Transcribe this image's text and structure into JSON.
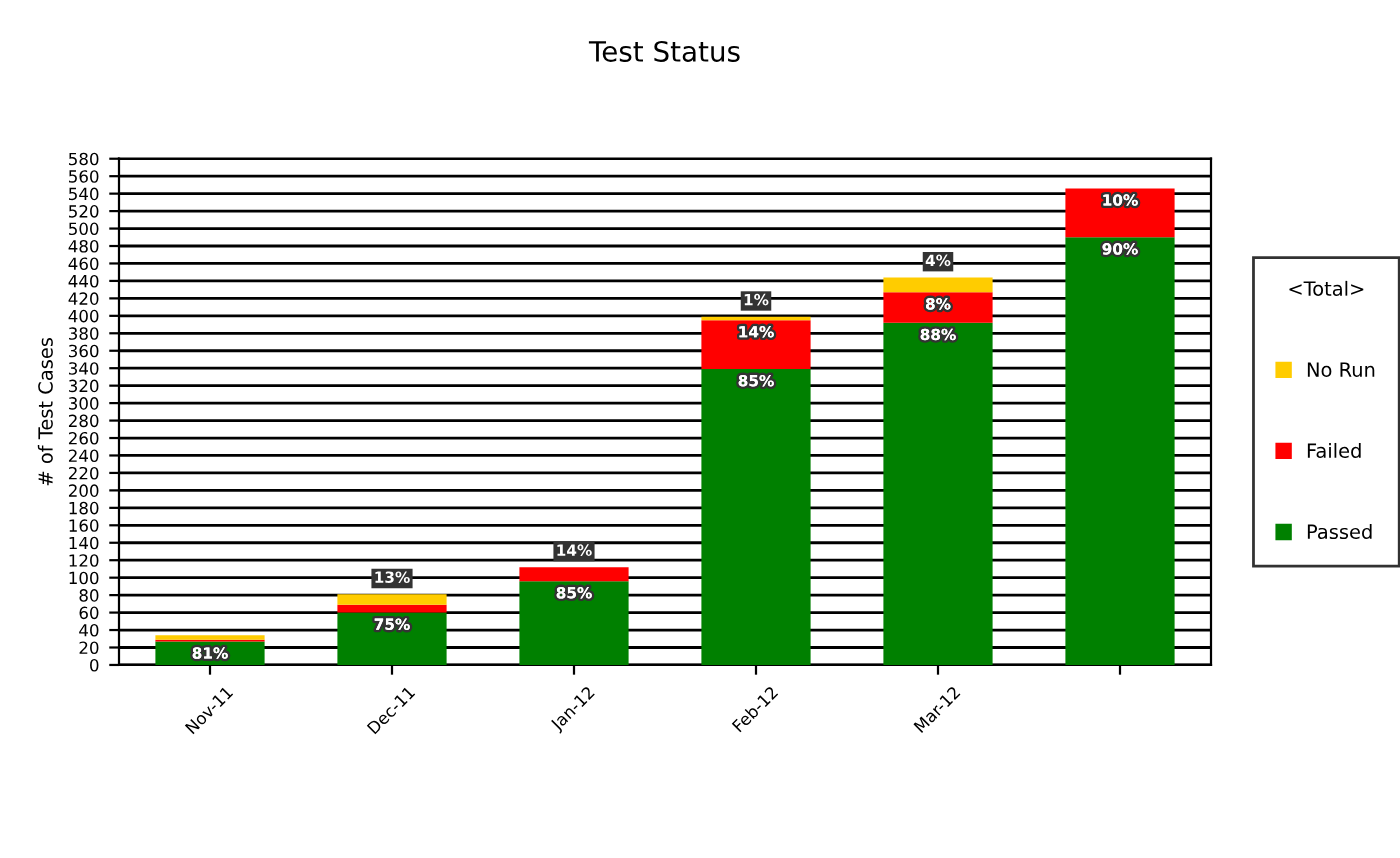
{
  "chart_data": {
    "type": "bar",
    "title": "Test Status",
    "ylabel": "# of Test Cases",
    "legend_title": "<Total>",
    "categories": [
      "Nov-11",
      "Dec-11",
      "Jan-12",
      "Feb-12",
      "Mar-12",
      null
    ],
    "stacked": true,
    "series": [
      {
        "name": "Passed",
        "color": "#008000",
        "values": [
          27,
          60,
          96,
          339,
          392,
          490
        ]
      },
      {
        "name": "Failed",
        "color": "#ff0000",
        "values": [
          2,
          9,
          16,
          56,
          35,
          56
        ]
      },
      {
        "name": "No Run",
        "color": "#ffcc00",
        "values": [
          5,
          12,
          0,
          4,
          17,
          0
        ]
      }
    ],
    "annotations": [
      {
        "text": "81%",
        "x": "Nov-11",
        "y": 27
      },
      {
        "text": "75%",
        "x": "Dec-11",
        "y": 60
      },
      {
        "text": "13%",
        "x": "Dec-11",
        "y": 81
      },
      {
        "text": "85%",
        "x": "Jan-12",
        "y": 96
      },
      {
        "text": "14%",
        "x": "Jan-12",
        "y": 112
      },
      {
        "text": "85%",
        "x": "Feb-12",
        "y": 339
      },
      {
        "text": "14%",
        "x": "Feb-12",
        "y": 395
      },
      {
        "text": "1%",
        "x": "Feb-12",
        "y": 399
      },
      {
        "text": "88%",
        "x": "Mar-12",
        "y": 392
      },
      {
        "text": "8%",
        "x": "Mar-12",
        "y": 427
      },
      {
        "text": "4%",
        "x": "Mar-12",
        "y": 444
      },
      {
        "text": "90%",
        "y": 490
      },
      {
        "text": "10%",
        "y": 546
      }
    ],
    "ylim": [
      0,
      580
    ],
    "yticks": [
      0,
      20,
      40,
      60,
      80,
      100,
      120,
      140,
      160,
      180,
      200,
      220,
      240,
      260,
      280,
      300,
      320,
      340,
      360,
      380,
      400,
      420,
      440,
      460,
      480,
      500,
      520,
      540,
      560,
      580
    ],
    "grid": "y",
    "legend": "right"
  }
}
